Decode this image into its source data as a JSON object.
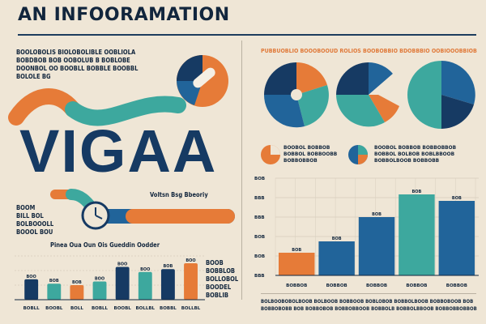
{
  "header": {
    "title": "AN INFOORAMATION"
  },
  "left": {
    "intro_text": [
      "BOOLOBOLIS BIOLOBOLIBLE OOBLIOLA",
      "BOBDBOB BOB OOBOLUB B BOBLOBE",
      "DOONBOL OO BOOBLL BOBBLE BOOBBL",
      "BOLOLE BG"
    ],
    "big_word": "VIGAA",
    "gauge_label": "Voltsn Bsg Bbeoriy",
    "side_text_left": [
      "BOOM",
      "BILL BOL",
      "BOLBOOOLL",
      "BOOOL BOU"
    ],
    "small_chart_title": "Pinea Oua Oun Ois Gueddin Oodder",
    "small_chart_side": [
      "BOOB",
      "BOBBLOB",
      "BOLLOBOL",
      "BOODEL",
      "BOBLIB"
    ],
    "small_chart_categories": [
      "BOBLL",
      "BOOBL",
      "BOLL",
      "BOBLL",
      "BOOBL",
      "BOLLBL",
      "BOBBL",
      "BOLLBL"
    ],
    "small_chart_value_labels": [
      "BOO",
      "BOB",
      "BOB",
      "BOO",
      "BOO",
      "BOO",
      "BOB",
      "BOO"
    ]
  },
  "right": {
    "top_text": "PUBBUOBLIO BOOOBOOUD ROLIOS BOOBOBBIO BDOBBBIO OOBIOOOBBIOB",
    "legend": [
      {
        "text": [
          "BOOBOL BOBBOB",
          "BOBBOL BOBBOOBB",
          "BOBBOBBOB"
        ]
      },
      {
        "text": [
          "BOOBOL BOBBOB BOBBOBBOB",
          "BOBBOL BOLBOB BOBLBBOOB",
          "BOBBOLBOOB BOBBOBB"
        ]
      }
    ],
    "chart_ticks": [
      "BOB",
      "BBB",
      "BBB",
      "BOB",
      "BOB",
      "BBB"
    ],
    "bottom_text": [
      "BOLBOOBOBOLBOOB BOLBOOB BOBBOOB BOBLOBOB BOBBOLBOOB BOBBOBOOB BOB",
      "BOBBOBOBB BOB BOBBOBOB BOBBOBBOOB BOBBOLB BOBBOLBBOOB BOBBOBBOBBOB"
    ]
  },
  "colors": {
    "navy": "#163a63",
    "blue": "#21649a",
    "teal": "#3da89e",
    "orange": "#e67b38",
    "bg": "#efe6d6"
  },
  "chart_data": [
    {
      "type": "bar",
      "categories": [
        "BOBLL",
        "BOOBL",
        "BOLL",
        "BOBLL",
        "BOOBL",
        "BOLLBL",
        "BOBBL",
        "BOLLBL"
      ],
      "values": [
        28,
        22,
        20,
        25,
        45,
        38,
        42,
        50
      ],
      "ylim": [
        0,
        60
      ]
    },
    {
      "type": "bar",
      "categories": [
        "BOBBOB",
        "BOBBOB",
        "BOBBOB",
        "BOBBOB",
        "BOBBOB"
      ],
      "values": [
        28,
        42,
        72,
        100,
        92
      ],
      "ylim": [
        0,
        120
      ]
    }
  ]
}
